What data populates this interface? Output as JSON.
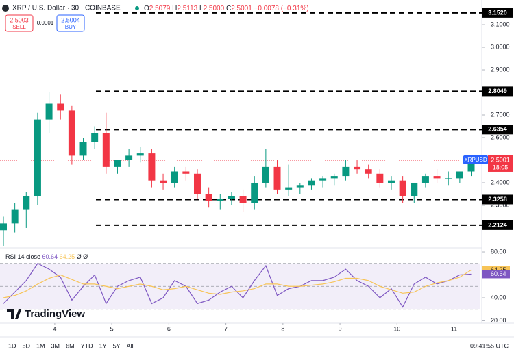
{
  "chart_data": {
    "type": "candlestick",
    "header": {
      "symbol": "XRP / U.S. Dollar · 30 · COINBASE",
      "ohlc": [
        "O",
        "2.5079",
        "H",
        "2.5113",
        "L",
        "2.5000",
        "C",
        "2.5001",
        "−0.0078 (−0.31%)"
      ],
      "sell_price": "2.5003",
      "sell": "SELL",
      "spread": "0.0001",
      "buy_price": "2.5004",
      "buy": "BUY"
    },
    "x": [
      3.1,
      3.3,
      3.5,
      3.7,
      3.9,
      4.1,
      4.3,
      4.5,
      4.7,
      4.9,
      5.1,
      5.3,
      5.5,
      5.7,
      5.9,
      6.1,
      6.3,
      6.5,
      6.7,
      6.9,
      7.1,
      7.3,
      7.5,
      7.7,
      7.9,
      8.1,
      8.3,
      8.5,
      8.7,
      8.9,
      9.1,
      9.3,
      9.5,
      9.7,
      9.9,
      10.1,
      10.3,
      10.5,
      10.7,
      10.9,
      11.1,
      11.3
    ],
    "series": [
      {
        "name": "XRPUSD",
        "up_color": "#089981",
        "down_color": "#f23645",
        "open": [
          2.19,
          2.22,
          2.28,
          2.34,
          2.68,
          2.75,
          2.72,
          2.52,
          2.58,
          2.62,
          2.47,
          2.5,
          2.52,
          2.53,
          2.41,
          2.4,
          2.45,
          2.44,
          2.35,
          2.32,
          2.33,
          2.34,
          2.31,
          2.4,
          2.47,
          2.37,
          2.38,
          2.39,
          2.41,
          2.42,
          2.43,
          2.47,
          2.46,
          2.44,
          2.4,
          2.41,
          2.34,
          2.4,
          2.43,
          2.42,
          2.42,
          2.45
        ],
        "high": [
          2.25,
          2.31,
          2.36,
          2.71,
          2.8,
          2.79,
          2.74,
          2.6,
          2.65,
          2.71,
          2.5,
          2.55,
          2.56,
          2.55,
          2.44,
          2.47,
          2.47,
          2.46,
          2.38,
          2.35,
          2.36,
          2.37,
          2.43,
          2.55,
          2.5,
          2.48,
          2.4,
          2.42,
          2.43,
          2.44,
          2.5,
          2.5,
          2.48,
          2.46,
          2.43,
          2.43,
          2.4,
          2.44,
          2.46,
          2.45,
          2.45,
          2.52
        ],
        "low": [
          2.12,
          2.18,
          2.2,
          2.3,
          2.62,
          2.68,
          2.48,
          2.5,
          2.55,
          2.44,
          2.44,
          2.47,
          2.49,
          2.38,
          2.37,
          2.38,
          2.41,
          2.33,
          2.29,
          2.28,
          2.3,
          2.27,
          2.28,
          2.38,
          2.35,
          2.34,
          2.35,
          2.37,
          2.38,
          2.39,
          2.41,
          2.44,
          2.42,
          2.38,
          2.37,
          2.31,
          2.31,
          2.38,
          2.4,
          2.39,
          2.4,
          2.43
        ],
        "close": [
          2.22,
          2.28,
          2.34,
          2.68,
          2.75,
          2.72,
          2.52,
          2.58,
          2.62,
          2.47,
          2.5,
          2.52,
          2.53,
          2.41,
          2.4,
          2.45,
          2.44,
          2.35,
          2.32,
          2.33,
          2.34,
          2.31,
          2.4,
          2.47,
          2.37,
          2.38,
          2.39,
          2.41,
          2.42,
          2.43,
          2.47,
          2.46,
          2.44,
          2.4,
          2.41,
          2.34,
          2.4,
          2.43,
          2.42,
          2.42,
          2.45,
          2.5
        ]
      }
    ],
    "xlim": [
      3.04,
      11.45
    ],
    "xticks": [
      4,
      5,
      6,
      7,
      8,
      9,
      10,
      11
    ],
    "ylim": [
      2.112,
      3.185
    ],
    "yticks": [
      {
        "value": 2.2,
        "label": "2.2000"
      },
      {
        "value": 2.3,
        "label": "2.3000"
      },
      {
        "value": 2.4,
        "label": "2.4000"
      },
      {
        "value": 2.5,
        "label": "2.5000"
      },
      {
        "value": 2.6,
        "label": "2.6000"
      },
      {
        "value": 2.7,
        "label": "2.7000"
      },
      {
        "value": 2.8,
        "label": "2.8000"
      },
      {
        "value": 2.9,
        "label": "2.9000"
      },
      {
        "value": 3.0,
        "label": "3.0000"
      },
      {
        "value": 3.1,
        "label": "3.1000"
      }
    ],
    "levels": [
      {
        "value": 3.152,
        "label": "3.1520"
      },
      {
        "value": 2.8049,
        "label": "2.8049"
      },
      {
        "value": 2.6354,
        "label": "2.6354"
      },
      {
        "value": 2.3258,
        "label": "2.3258"
      },
      {
        "value": 2.2124,
        "label": "2.2124"
      }
    ],
    "last": {
      "symbol": "XRPUSD",
      "value": 2.5001,
      "label": "2.5001",
      "countdown": "18:05"
    },
    "rsi": {
      "title": "RSI 14 close",
      "rsi_label": "60.64",
      "ma_label": "64.25",
      "extra": "Ø Ø",
      "rsi_color": "#7e57c2",
      "ma_color": "#f7c457",
      "values": [
        35,
        45,
        55,
        70,
        65,
        58,
        38,
        50,
        60,
        35,
        50,
        55,
        58,
        35,
        40,
        55,
        50,
        35,
        38,
        45,
        50,
        40,
        55,
        68,
        42,
        48,
        50,
        55,
        55,
        58,
        65,
        55,
        50,
        40,
        48,
        32,
        52,
        58,
        52,
        55,
        60,
        60.64
      ],
      "ma": [
        40,
        42,
        46,
        52,
        57,
        60,
        56,
        52,
        52,
        50,
        48,
        50,
        52,
        50,
        47,
        48,
        50,
        47,
        44,
        43,
        45,
        46,
        48,
        52,
        52,
        50,
        50,
        51,
        52,
        54,
        57,
        57,
        55,
        50,
        47,
        44,
        45,
        50,
        53,
        55,
        58,
        64.25
      ],
      "ylim": [
        17.9,
        83.6
      ],
      "yticks": [
        {
          "value": 80,
          "label": "80.00"
        },
        {
          "value": 40,
          "label": "40.00"
        },
        {
          "value": 20,
          "label": "20.00"
        }
      ],
      "bands": [
        70,
        50,
        30
      ]
    },
    "footer": {
      "ranges": [
        "1D",
        "5D",
        "1M",
        "3M",
        "6M",
        "YTD",
        "1Y",
        "5Y",
        "All"
      ],
      "time": "09:41:55 UTC",
      "logo": "TradingView"
    }
  }
}
